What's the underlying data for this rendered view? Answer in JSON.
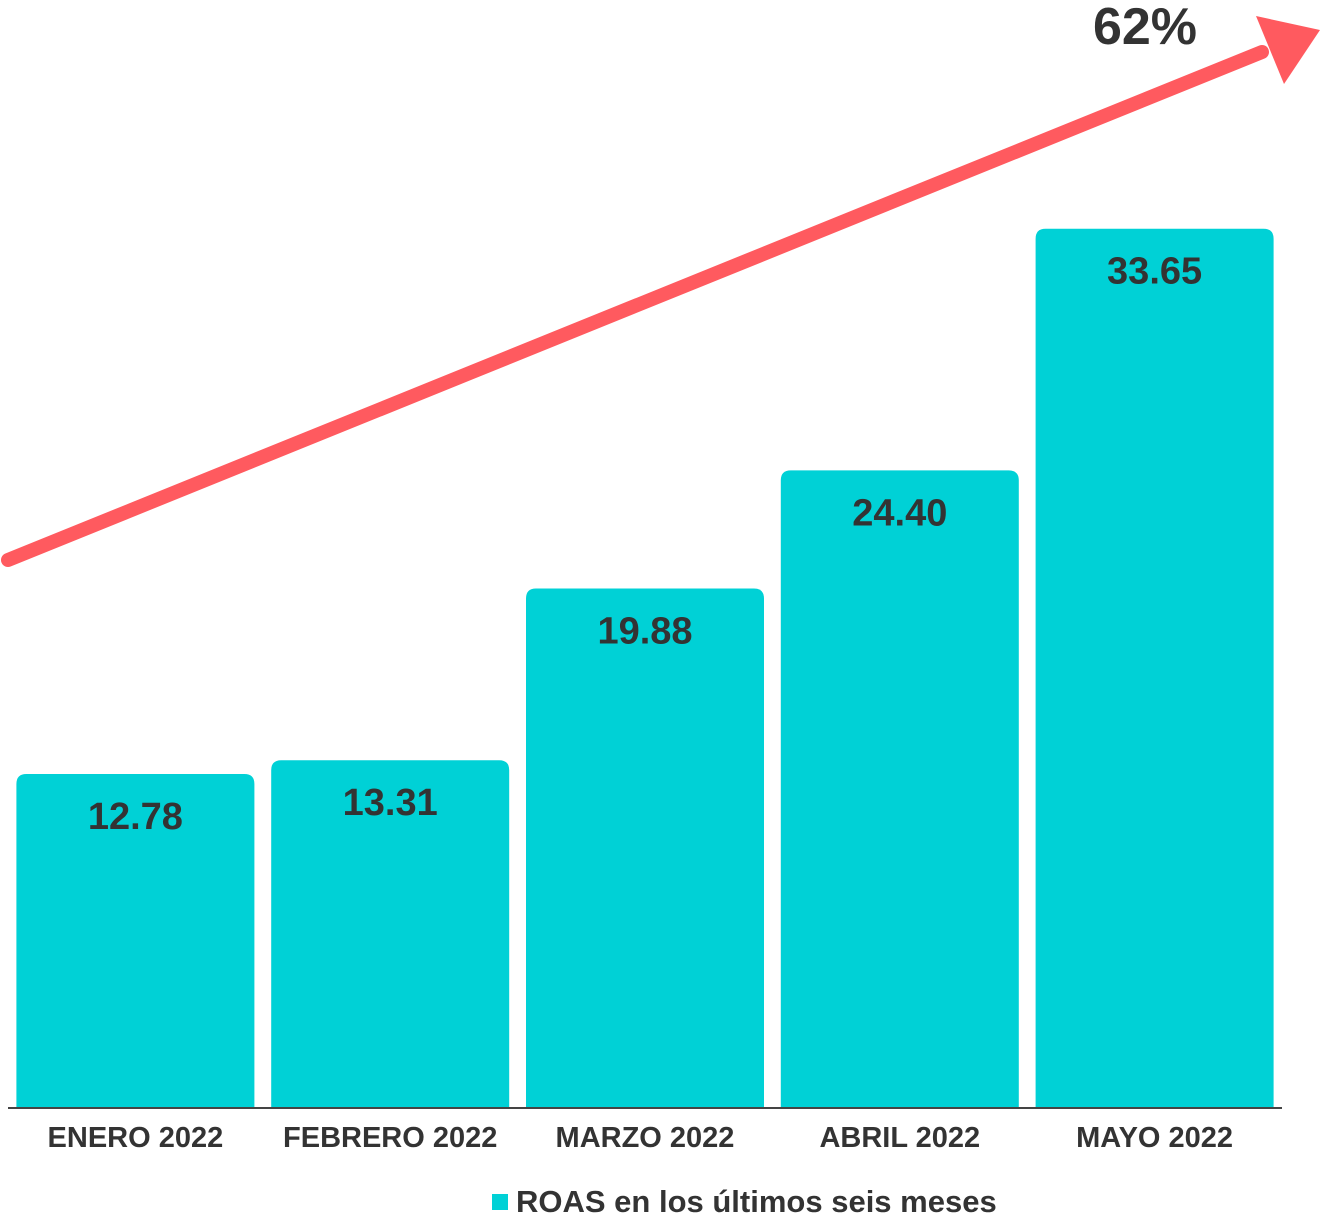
{
  "chart_data": {
    "type": "bar",
    "categories": [
      "ENERO 2022",
      "FEBRERO 2022",
      "MARZO 2022",
      "ABRIL 2022",
      "MAYO 2022"
    ],
    "series": [
      {
        "name": "ROAS en los últimos seis meses",
        "values": [
          12.78,
          13.31,
          19.88,
          24.4,
          33.65
        ],
        "labels": [
          "12.78",
          "13.31",
          "19.88",
          "24.40",
          "33.65"
        ],
        "color": "#00D1D6"
      }
    ],
    "annotation": {
      "text": "62%",
      "type": "trend-arrow",
      "color": "#FF5A5F"
    },
    "ylim": [
      0,
      41
    ],
    "grid": false,
    "legend": "bottom-center",
    "title": "",
    "xlabel": "",
    "ylabel": ""
  },
  "colors": {
    "bar": "#00D1D6",
    "arrow": "#FF5A5F",
    "text": "#333333",
    "baseline": "#444444"
  }
}
